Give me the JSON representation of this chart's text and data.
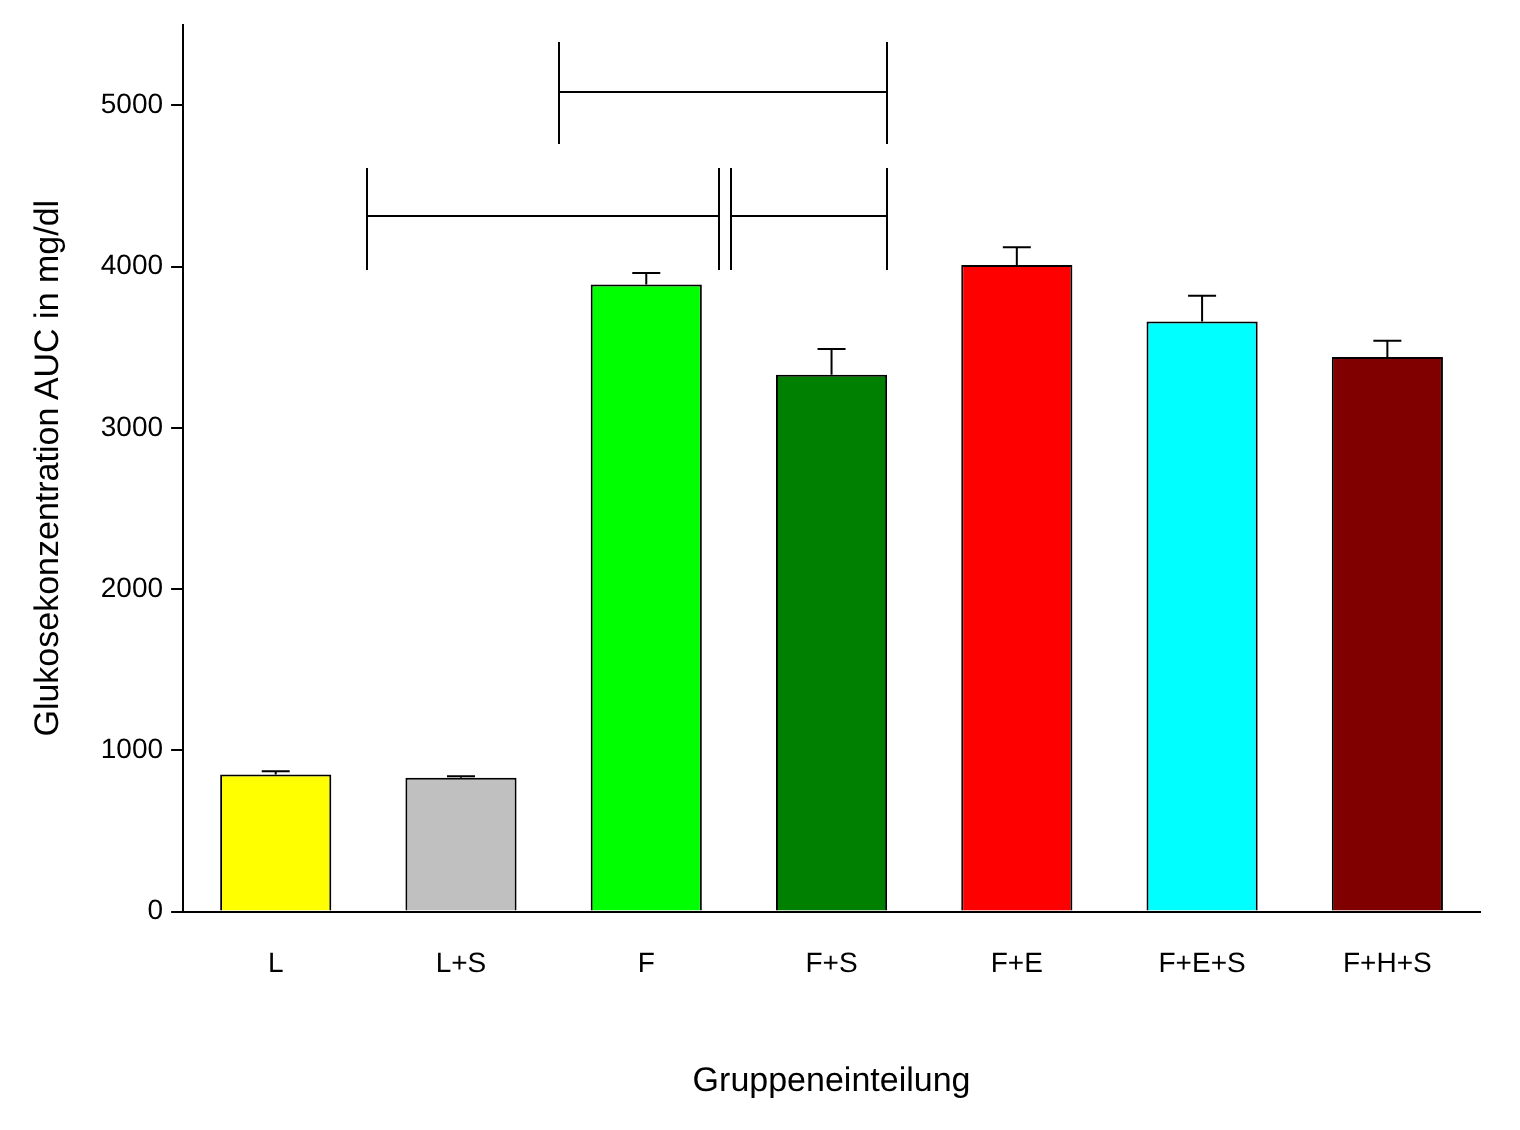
{
  "chart_data": {
    "type": "bar",
    "xlabel": "Gruppeneinteilung",
    "ylabel": "Glukosekonzentration AUC in mg/dl",
    "categories": [
      "L",
      "L+S",
      "F",
      "F+S",
      "F+E",
      "F+E+S",
      "F+H+S"
    ],
    "values": [
      850,
      830,
      3890,
      3330,
      4010,
      3660,
      3440
    ],
    "errors": [
      [
        850,
        870
      ],
      [
        830,
        840
      ],
      [
        3890,
        3960
      ],
      [
        3330,
        3490
      ],
      [
        4010,
        4120
      ],
      [
        3660,
        3820
      ],
      [
        3440,
        3540
      ]
    ],
    "colors": [
      "#ffff00",
      "#c0c0c0",
      "#00ff00",
      "#008000",
      "#ff0000",
      "#00ffff",
      "#800000"
    ],
    "ylim": [
      0,
      5500
    ],
    "yticks": [
      0,
      1000,
      2000,
      3000,
      4000,
      5000
    ],
    "grid": false,
    "legend": false
  }
}
